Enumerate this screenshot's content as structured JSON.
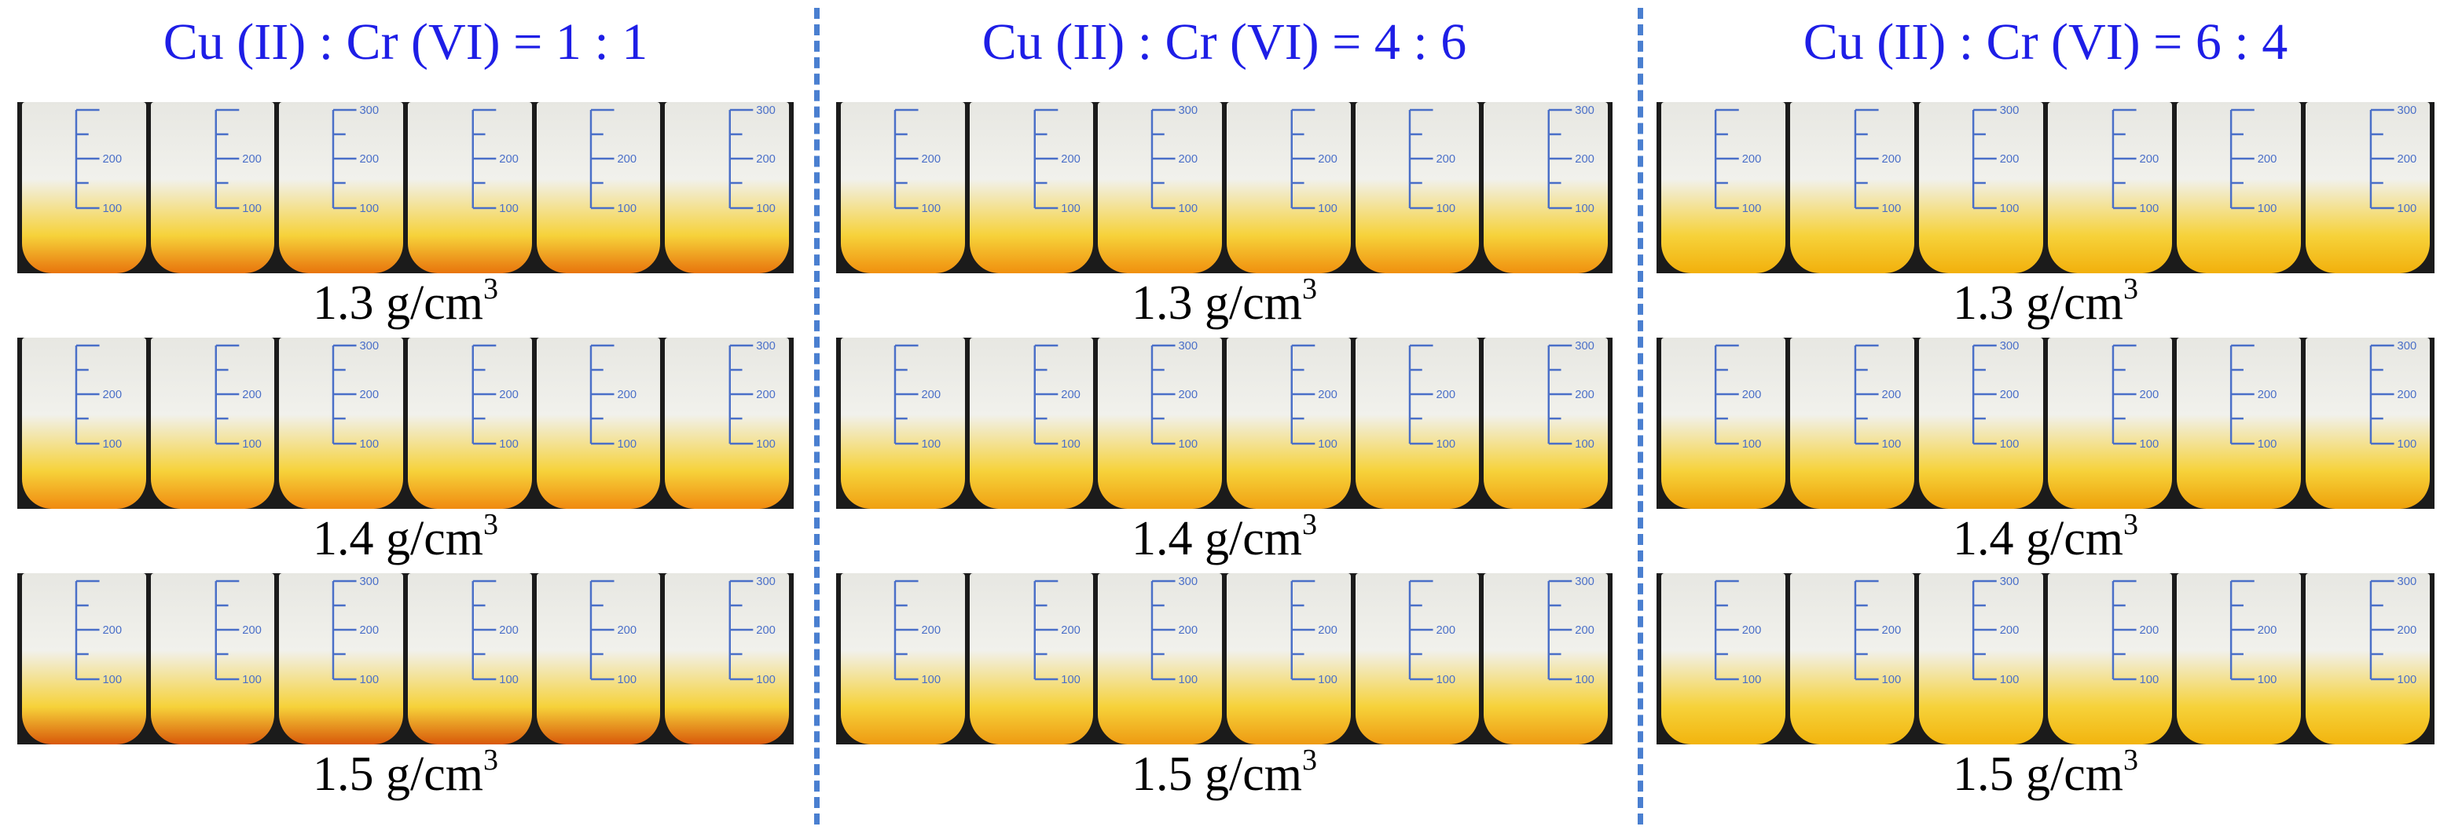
{
  "panels": [
    {
      "title": "Cu (II) : Cr (VI) = 1 : 1",
      "rows": [
        {
          "density_value": "1.3 g/cm",
          "density_exponent": "3",
          "bottom_color": "#e8740c",
          "beakers": 6,
          "ticks": [
            "200",
            "100"
          ],
          "top_tick": "300"
        },
        {
          "density_value": "1.4 g/cm",
          "density_exponent": "3",
          "bottom_color": "#f08a10",
          "beakers": 6,
          "ticks": [
            "200",
            "100"
          ],
          "top_tick": "300"
        },
        {
          "density_value": "1.5 g/cm",
          "density_exponent": "3",
          "bottom_color": "#d8580a",
          "beakers": 6,
          "ticks": [
            "200",
            "100"
          ],
          "top_tick": "300"
        }
      ]
    },
    {
      "title": "Cu (II) : Cr (VI) = 4 : 6",
      "rows": [
        {
          "density_value": "1.3 g/cm",
          "density_exponent": "3",
          "bottom_color": "#f0900e",
          "beakers": 6,
          "ticks": [
            "200",
            "100"
          ],
          "top_tick": "300"
        },
        {
          "density_value": "1.4 g/cm",
          "density_exponent": "3",
          "bottom_color": "#f0a012",
          "beakers": 6,
          "ticks": [
            "200",
            "100"
          ],
          "top_tick": "300"
        },
        {
          "density_value": "1.5 g/cm",
          "density_exponent": "3",
          "bottom_color": "#ee9a12",
          "beakers": 6,
          "ticks": [
            "200",
            "100"
          ],
          "top_tick": "300"
        }
      ]
    },
    {
      "title": "Cu (II) : Cr (VI) = 6 : 4",
      "rows": [
        {
          "density_value": "1.3 g/cm",
          "density_exponent": "3",
          "bottom_color": "#f2b00c",
          "beakers": 6,
          "ticks": [
            "200",
            "100"
          ],
          "top_tick": "300"
        },
        {
          "density_value": "1.4 g/cm",
          "density_exponent": "3",
          "bottom_color": "#eea00a",
          "beakers": 6,
          "ticks": [
            "200",
            "100"
          ],
          "top_tick": "300"
        },
        {
          "density_value": "1.5 g/cm",
          "density_exponent": "3",
          "bottom_color": "#f2b40e",
          "beakers": 6,
          "ticks": [
            "200",
            "100"
          ],
          "top_tick": "300"
        }
      ]
    }
  ],
  "colors": {
    "title_text": "#1e1ee6",
    "divider": "#4a7fd0",
    "graduation": "#4a6fc8",
    "beaker_glass": "#e7e7e2",
    "liquid_yellow": "#f6d23a"
  }
}
